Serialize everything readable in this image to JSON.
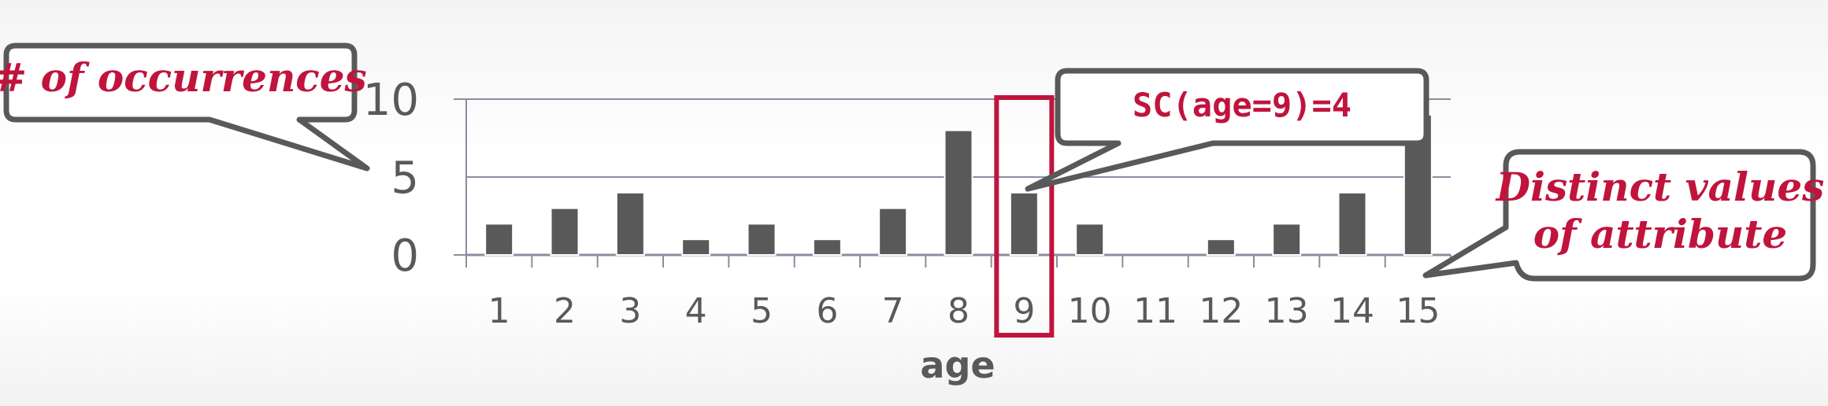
{
  "chart_data": {
    "type": "bar",
    "xlabel": "age",
    "ylabel": "",
    "categories": [
      "1",
      "2",
      "3",
      "4",
      "5",
      "6",
      "7",
      "8",
      "9",
      "10",
      "11",
      "12",
      "13",
      "14",
      "15"
    ],
    "values": [
      2,
      3,
      4,
      1,
      2,
      1,
      3,
      8,
      4,
      2,
      0,
      1,
      2,
      4,
      9
    ],
    "ylim": [
      0,
      10
    ],
    "yticks": [
      "0",
      "5",
      "10"
    ],
    "grid": true,
    "highlight_category": "9",
    "bar_color": "#595959",
    "accent_color": "#c0143c"
  },
  "callouts": {
    "occurrences": "# of occurrences",
    "sc": "SC(age=9)=4",
    "distinct_line1": "Distinct values",
    "distinct_line2": "of attribute"
  }
}
